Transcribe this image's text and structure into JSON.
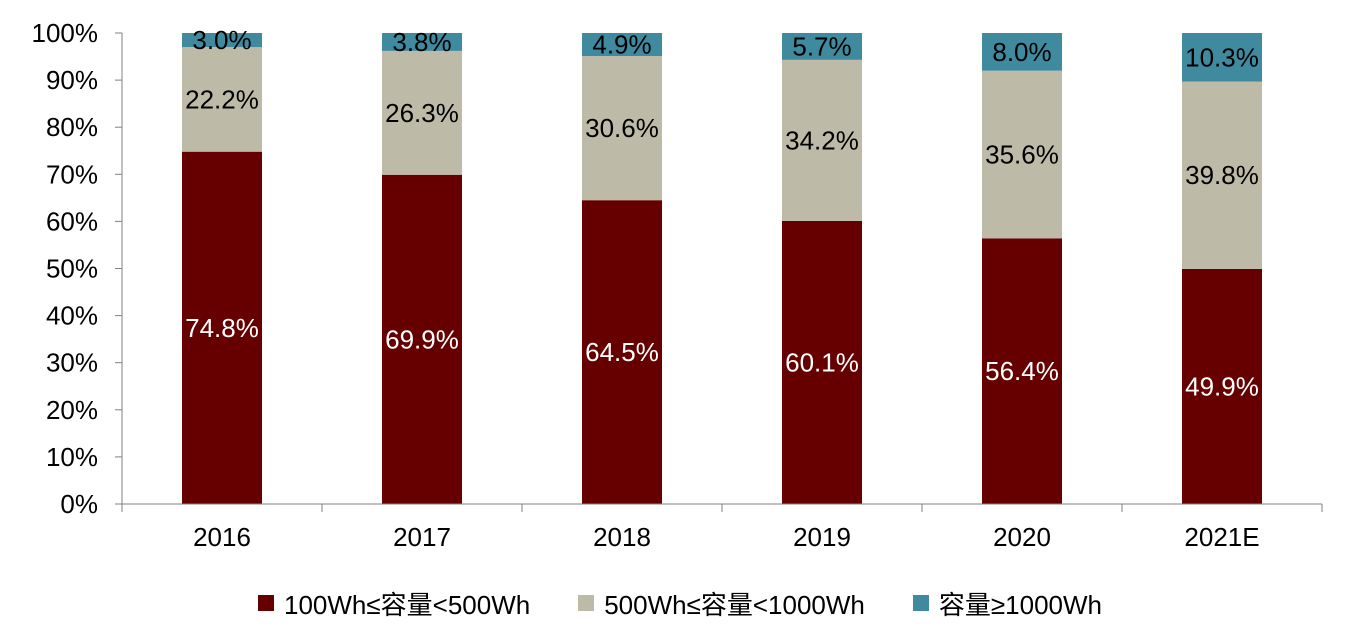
{
  "chart_data": {
    "type": "bar",
    "stacked": true,
    "categories": [
      "2016",
      "2017",
      "2018",
      "2019",
      "2020",
      "2021E"
    ],
    "series": [
      {
        "name": "100Wh≤容量<500Wh",
        "color": "#660000",
        "label_color": "#ffffff",
        "values": [
          74.8,
          69.9,
          64.5,
          60.1,
          56.4,
          49.9
        ],
        "labels": [
          "74.8%",
          "69.9%",
          "64.5%",
          "60.1%",
          "56.4%",
          "49.9%"
        ]
      },
      {
        "name": "500Wh≤容量<1000Wh",
        "color": "#bdbba8",
        "label_color": "#000000",
        "values": [
          22.2,
          26.3,
          30.6,
          34.2,
          35.6,
          39.8
        ],
        "labels": [
          "22.2%",
          "26.3%",
          "30.6%",
          "34.2%",
          "35.6%",
          "39.8%"
        ]
      },
      {
        "name": "容量≥1000Wh",
        "color": "#3f8a9f",
        "label_color": "#000000",
        "values": [
          3.0,
          3.8,
          4.9,
          5.7,
          8.0,
          10.3
        ],
        "labels": [
          "3.0%",
          "3.8%",
          "4.9%",
          "5.7%",
          "8.0%",
          "10.3%"
        ]
      }
    ],
    "yticks": [
      "0%",
      "10%",
      "20%",
      "30%",
      "40%",
      "50%",
      "60%",
      "70%",
      "80%",
      "90%",
      "100%"
    ],
    "ylim": [
      0,
      100
    ],
    "title": "",
    "xlabel": "",
    "ylabel": "",
    "grid": false,
    "legend_position": "bottom"
  }
}
